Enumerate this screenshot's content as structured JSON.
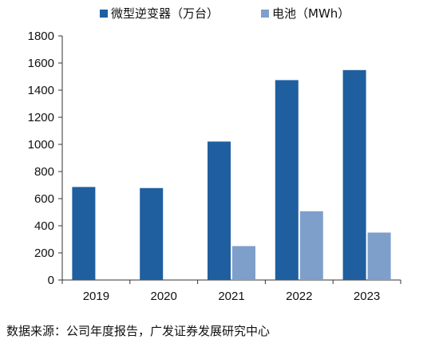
{
  "chart_data": {
    "type": "bar",
    "categories": [
      "2019",
      "2020",
      "2021",
      "2022",
      "2023"
    ],
    "series": [
      {
        "name": "微型逆变器（万台）",
        "values": [
          686,
          678,
          1021,
          1474,
          1548
        ],
        "color": "#1f5f9f"
      },
      {
        "name": "电池（MWh）",
        "values": [
          null,
          null,
          250,
          507,
          350
        ],
        "color": "#7f9fcb"
      }
    ],
    "ylim": [
      0,
      1800
    ],
    "yticks": [
      "0",
      "200",
      "400",
      "600",
      "800",
      "1000",
      "1200",
      "1400",
      "1600",
      "1800"
    ],
    "grid": false,
    "legend_position": "top"
  },
  "source_text": "数据来源：公司年度报告，广发证券发展研究中心"
}
